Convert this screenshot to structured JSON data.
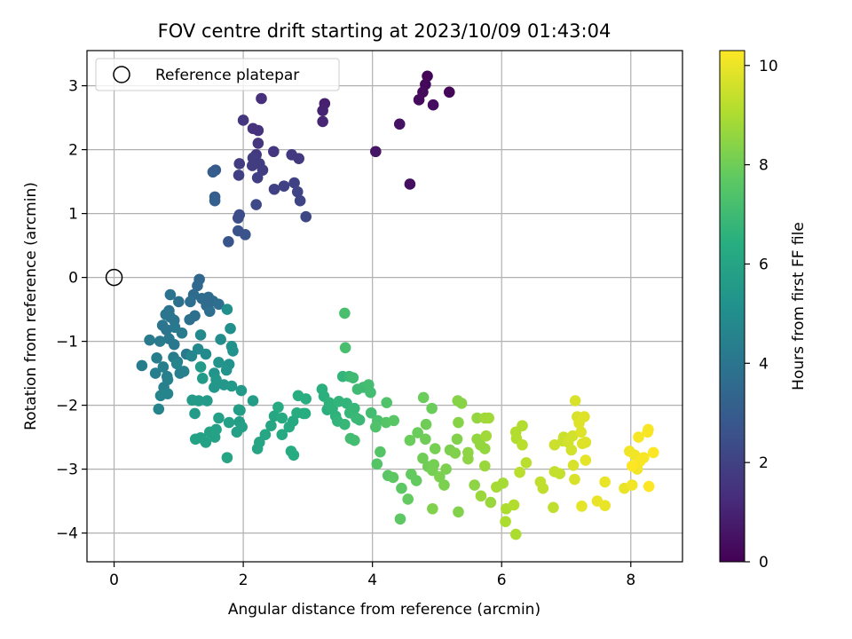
{
  "chart_data": {
    "type": "scatter",
    "title": "FOV centre drift starting at 2023/10/09 01:43:04",
    "xlabel": "Angular distance from reference (arcmin)",
    "ylabel": "Rotation from reference (arcmin)",
    "xlim": [
      -0.42,
      8.8
    ],
    "ylim": [
      -4.45,
      3.55
    ],
    "xticks": [
      0,
      2,
      4,
      6,
      8
    ],
    "yticks": [
      3,
      2,
      1,
      0,
      -1,
      -2,
      -3,
      -4
    ],
    "xtick_labels": [
      "0",
      "2",
      "4",
      "6",
      "8"
    ],
    "ytick_labels": [
      "3",
      "2",
      "1",
      "0",
      "−1",
      "−2",
      "−3",
      "−4"
    ],
    "grid": true,
    "legend": {
      "placement": "upper-left",
      "entries": [
        {
          "label": "Reference platepar",
          "marker": "open-circle"
        }
      ]
    },
    "reference_point": {
      "x": 0,
      "y": 0
    },
    "colorbar": {
      "label": "Hours from first FF file",
      "colormap": "viridis",
      "range": [
        0,
        10.3
      ],
      "ticks": [
        0,
        2,
        4,
        6,
        8,
        10
      ],
      "tick_labels": [
        "0",
        "2",
        "4",
        "6",
        "8",
        "10"
      ]
    },
    "points": [
      [
        4.85,
        3.15,
        0.1
      ],
      [
        4.82,
        3.02,
        0.2
      ],
      [
        4.78,
        2.9,
        0.25
      ],
      [
        4.72,
        2.78,
        0.3
      ],
      [
        4.94,
        2.7,
        0.35
      ],
      [
        5.19,
        2.9,
        0.15
      ],
      [
        4.42,
        2.4,
        0.5
      ],
      [
        4.05,
        1.97,
        0.6
      ],
      [
        4.58,
        1.46,
        0.4
      ],
      [
        3.26,
        2.72,
        0.9
      ],
      [
        3.23,
        2.61,
        1.0
      ],
      [
        3.23,
        2.44,
        1.1
      ],
      [
        2.28,
        2.8,
        1.4
      ],
      [
        2.23,
        2.3,
        1.5
      ],
      [
        2.15,
        2.33,
        1.5
      ],
      [
        2.0,
        2.46,
        1.6
      ],
      [
        2.23,
        2.1,
        1.6
      ],
      [
        2.47,
        1.97,
        1.6
      ],
      [
        2.75,
        1.92,
        1.7
      ],
      [
        2.86,
        1.86,
        1.7
      ],
      [
        2.2,
        1.92,
        1.7
      ],
      [
        2.15,
        1.87,
        1.8
      ],
      [
        2.25,
        1.78,
        1.8
      ],
      [
        2.14,
        1.75,
        1.8
      ],
      [
        2.3,
        1.68,
        1.8
      ],
      [
        1.94,
        1.78,
        1.8
      ],
      [
        1.93,
        1.6,
        1.9
      ],
      [
        2.22,
        1.56,
        1.9
      ],
      [
        2.63,
        1.43,
        2.0
      ],
      [
        2.48,
        1.38,
        2.0
      ],
      [
        2.79,
        1.48,
        2.0
      ],
      [
        2.84,
        1.34,
        2.1
      ],
      [
        2.88,
        1.2,
        2.1
      ],
      [
        2.97,
        0.95,
        2.2
      ],
      [
        2.2,
        1.14,
        2.3
      ],
      [
        1.92,
        0.93,
        2.4
      ],
      [
        1.94,
        0.98,
        2.4
      ],
      [
        1.92,
        0.73,
        2.6
      ],
      [
        2.03,
        0.67,
        2.6
      ],
      [
        1.77,
        0.56,
        2.7
      ],
      [
        1.57,
        1.68,
        2.9
      ],
      [
        1.53,
        1.65,
        3.0
      ],
      [
        1.56,
        1.26,
        3.0
      ],
      [
        1.56,
        1.2,
        3.1
      ],
      [
        1.32,
        -0.03,
        3.4
      ],
      [
        1.29,
        -0.13,
        3.5
      ],
      [
        1.23,
        -0.27,
        3.6
      ],
      [
        1.36,
        -0.33,
        3.6
      ],
      [
        1.46,
        -0.31,
        3.6
      ],
      [
        1.53,
        -0.37,
        3.6
      ],
      [
        1.43,
        -0.44,
        3.6
      ],
      [
        1.48,
        -0.53,
        3.7
      ],
      [
        1.62,
        -0.42,
        3.7
      ],
      [
        1.18,
        -0.38,
        3.7
      ],
      [
        1.25,
        -0.6,
        3.8
      ],
      [
        1.17,
        -0.66,
        3.8
      ],
      [
        1.0,
        -0.38,
        3.8
      ],
      [
        0.87,
        -0.27,
        3.9
      ],
      [
        0.85,
        -0.52,
        3.9
      ],
      [
        0.8,
        -0.58,
        4.0
      ],
      [
        0.87,
        -0.62,
        4.0
      ],
      [
        0.93,
        -0.67,
        4.0
      ],
      [
        0.75,
        -0.75,
        4.0
      ],
      [
        0.81,
        -0.82,
        4.0
      ],
      [
        0.85,
        -0.96,
        4.1
      ],
      [
        0.93,
        -1.05,
        4.1
      ],
      [
        0.94,
        -0.78,
        4.1
      ],
      [
        1.05,
        -0.87,
        4.2
      ],
      [
        1.12,
        -1.2,
        4.2
      ],
      [
        0.55,
        -0.98,
        4.2
      ],
      [
        0.71,
        -1.0,
        4.2
      ],
      [
        0.66,
        -1.26,
        4.3
      ],
      [
        0.92,
        -1.25,
        4.3
      ],
      [
        0.98,
        -1.32,
        4.3
      ],
      [
        0.43,
        -1.38,
        4.3
      ],
      [
        0.64,
        -1.5,
        4.4
      ],
      [
        0.76,
        -1.4,
        4.4
      ],
      [
        0.82,
        -1.55,
        4.4
      ],
      [
        1.02,
        -1.5,
        4.4
      ],
      [
        1.08,
        -1.47,
        4.5
      ],
      [
        0.83,
        -1.6,
        4.5
      ],
      [
        0.77,
        -1.72,
        4.5
      ],
      [
        0.83,
        -1.82,
        4.6
      ],
      [
        0.72,
        -1.85,
        4.6
      ],
      [
        0.69,
        -2.06,
        4.6
      ],
      [
        0.97,
        -1.35,
        4.6
      ],
      [
        1.2,
        -1.23,
        4.7
      ],
      [
        1.34,
        -0.9,
        4.8
      ],
      [
        1.3,
        -1.12,
        4.8
      ],
      [
        1.42,
        -1.2,
        4.9
      ],
      [
        1.65,
        -0.97,
        5.0
      ],
      [
        1.75,
        -0.5,
        5.1
      ],
      [
        1.8,
        -0.8,
        5.1
      ],
      [
        1.82,
        -1.08,
        5.2
      ],
      [
        1.84,
        -1.15,
        5.2
      ],
      [
        1.78,
        -1.36,
        5.2
      ],
      [
        1.74,
        -1.45,
        5.3
      ],
      [
        1.62,
        -1.33,
        5.3
      ],
      [
        1.55,
        -1.5,
        5.3
      ],
      [
        1.58,
        -1.6,
        5.4
      ],
      [
        1.55,
        -1.72,
        5.4
      ],
      [
        1.7,
        -1.68,
        5.4
      ],
      [
        1.82,
        -1.7,
        5.5
      ],
      [
        1.97,
        -1.77,
        5.5
      ],
      [
        1.34,
        -1.4,
        5.6
      ],
      [
        1.37,
        -1.58,
        5.6
      ],
      [
        1.31,
        -1.93,
        5.6
      ],
      [
        1.44,
        -1.93,
        5.6
      ],
      [
        1.21,
        -1.92,
        5.6
      ],
      [
        1.25,
        -2.13,
        5.6
      ],
      [
        1.93,
        -2.07,
        5.7
      ],
      [
        1.95,
        -2.08,
        5.7
      ],
      [
        2.15,
        -1.93,
        5.7
      ],
      [
        1.94,
        -2.26,
        5.7
      ],
      [
        1.98,
        -2.34,
        5.8
      ],
      [
        1.9,
        -2.42,
        5.8
      ],
      [
        1.62,
        -2.2,
        5.8
      ],
      [
        1.78,
        -2.27,
        5.8
      ],
      [
        1.58,
        -2.38,
        5.8
      ],
      [
        1.48,
        -2.42,
        5.9
      ],
      [
        1.34,
        -2.51,
        5.9
      ],
      [
        1.26,
        -2.53,
        5.9
      ],
      [
        1.42,
        -2.58,
        5.9
      ],
      [
        1.56,
        -2.5,
        5.9
      ],
      [
        1.75,
        -2.82,
        6.0
      ],
      [
        2.25,
        -2.58,
        6.0
      ],
      [
        2.22,
        -2.68,
        6.0
      ],
      [
        2.34,
        -2.46,
        6.1
      ],
      [
        2.43,
        -2.32,
        6.1
      ],
      [
        2.48,
        -2.17,
        6.1
      ],
      [
        2.54,
        -2.03,
        6.2
      ],
      [
        2.6,
        -2.2,
        6.2
      ],
      [
        2.6,
        -2.46,
        6.2
      ],
      [
        2.71,
        -2.34,
        6.2
      ],
      [
        2.77,
        -2.25,
        6.2
      ],
      [
        2.74,
        -2.72,
        6.3
      ],
      [
        2.78,
        -2.78,
        6.3
      ],
      [
        2.83,
        -2.12,
        6.3
      ],
      [
        2.93,
        -2.13,
        6.3
      ],
      [
        2.96,
        -2.13,
        6.4
      ],
      [
        2.97,
        -1.9,
        6.4
      ],
      [
        2.85,
        -1.85,
        6.4
      ],
      [
        3.22,
        -1.75,
        6.5
      ],
      [
        3.25,
        -1.86,
        6.5
      ],
      [
        3.3,
        -2.07,
        6.5
      ],
      [
        3.33,
        -1.96,
        6.6
      ],
      [
        3.38,
        -2.05,
        6.6
      ],
      [
        3.43,
        -2.17,
        6.6
      ],
      [
        3.46,
        -2.25,
        6.7
      ],
      [
        3.48,
        -1.94,
        6.7
      ],
      [
        3.54,
        -1.55,
        6.7
      ],
      [
        3.6,
        -1.97,
        6.7
      ],
      [
        3.57,
        -2.3,
        6.8
      ],
      [
        3.65,
        -2.12,
        6.8
      ],
      [
        3.72,
        -2.05,
        6.8
      ],
      [
        3.75,
        -2.2,
        6.9
      ],
      [
        3.8,
        -2.23,
        6.9
      ],
      [
        3.64,
        -1.55,
        6.9
      ],
      [
        3.7,
        -1.57,
        7.0
      ],
      [
        3.77,
        -1.75,
        7.0
      ],
      [
        3.86,
        -1.72,
        7.0
      ],
      [
        3.94,
        -1.68,
        7.1
      ],
      [
        3.97,
        -1.8,
        7.1
      ],
      [
        3.98,
        -2.12,
        7.1
      ],
      [
        3.66,
        -2.52,
        7.1
      ],
      [
        3.72,
        -2.55,
        7.1
      ],
      [
        3.58,
        -1.1,
        7.2
      ],
      [
        3.57,
        -0.56,
        7.2
      ],
      [
        4.08,
        -2.24,
        7.3
      ],
      [
        4.05,
        -2.34,
        7.4
      ],
      [
        4.22,
        -1.96,
        7.4
      ],
      [
        4.21,
        -2.27,
        7.5
      ],
      [
        4.12,
        -2.73,
        7.5
      ],
      [
        4.07,
        -2.92,
        7.5
      ],
      [
        4.33,
        -2.24,
        7.6
      ],
      [
        4.24,
        -3.1,
        7.6
      ],
      [
        4.32,
        -3.13,
        7.7
      ],
      [
        4.45,
        -3.3,
        7.7
      ],
      [
        4.43,
        -3.78,
        7.7
      ],
      [
        4.55,
        -3.47,
        7.8
      ],
      [
        4.6,
        -3.08,
        7.8
      ],
      [
        4.68,
        -3.18,
        7.8
      ],
      [
        4.58,
        -2.55,
        7.9
      ],
      [
        4.7,
        -2.43,
        7.9
      ],
      [
        4.79,
        -1.88,
        7.9
      ],
      [
        4.92,
        -2.05,
        7.9
      ],
      [
        4.83,
        -2.3,
        8.0
      ],
      [
        4.82,
        -2.53,
        8.0
      ],
      [
        4.78,
        -2.83,
        8.0
      ],
      [
        4.86,
        -2.96,
        8.0
      ],
      [
        4.95,
        -2.93,
        8.1
      ],
      [
        4.97,
        -2.68,
        8.1
      ],
      [
        4.93,
        -3.02,
        8.1
      ],
      [
        5.04,
        -3.12,
        8.2
      ],
      [
        5.11,
        -3.25,
        8.2
      ],
      [
        5.14,
        -3.0,
        8.2
      ],
      [
        5.2,
        -2.7,
        8.2
      ],
      [
        5.28,
        -2.75,
        8.3
      ],
      [
        4.93,
        -3.62,
        8.3
      ],
      [
        5.33,
        -3.67,
        8.3
      ],
      [
        5.31,
        -2.53,
        8.3
      ],
      [
        5.32,
        -1.93,
        8.4
      ],
      [
        5.38,
        -1.97,
        8.4
      ],
      [
        5.33,
        -2.27,
        8.4
      ],
      [
        5.48,
        -2.74,
        8.5
      ],
      [
        5.48,
        -2.84,
        8.5
      ],
      [
        5.58,
        -3.25,
        8.5
      ],
      [
        5.62,
        -2.2,
        8.6
      ],
      [
        5.62,
        -2.53,
        8.6
      ],
      [
        5.67,
        -2.62,
        8.6
      ],
      [
        5.74,
        -2.68,
        8.6
      ],
      [
        5.74,
        -2.95,
        8.7
      ],
      [
        5.68,
        -3.42,
        8.7
      ],
      [
        5.83,
        -3.52,
        8.7
      ],
      [
        5.74,
        -2.2,
        8.8
      ],
      [
        5.76,
        -2.48,
        8.8
      ],
      [
        5.8,
        -2.2,
        8.8
      ],
      [
        5.92,
        -3.28,
        8.9
      ],
      [
        6.02,
        -3.22,
        8.9
      ],
      [
        6.07,
        -3.62,
        9.0
      ],
      [
        6.06,
        -3.82,
        9.0
      ],
      [
        6.22,
        -4.02,
        9.0
      ],
      [
        6.19,
        -3.56,
        9.1
      ],
      [
        6.22,
        -2.42,
        9.1
      ],
      [
        6.23,
        -2.52,
        9.1
      ],
      [
        6.32,
        -2.32,
        9.1
      ],
      [
        6.32,
        -2.62,
        9.2
      ],
      [
        6.28,
        -3.05,
        9.2
      ],
      [
        6.38,
        -2.9,
        9.2
      ],
      [
        6.6,
        -3.2,
        9.3
      ],
      [
        6.64,
        -3.3,
        9.3
      ],
      [
        6.8,
        -3.6,
        9.3
      ],
      [
        6.82,
        -3.04,
        9.4
      ],
      [
        6.9,
        -3.07,
        9.4
      ],
      [
        6.82,
        -2.62,
        9.5
      ],
      [
        6.95,
        -2.56,
        9.5
      ],
      [
        6.96,
        -2.5,
        9.5
      ],
      [
        7.03,
        -2.58,
        9.6
      ],
      [
        7.1,
        -2.48,
        9.6
      ],
      [
        7.08,
        -2.7,
        9.6
      ],
      [
        7.11,
        -2.94,
        9.7
      ],
      [
        7.13,
        -3.16,
        9.7
      ],
      [
        7.14,
        -1.93,
        9.7
      ],
      [
        7.17,
        -2.18,
        9.7
      ],
      [
        7.2,
        -2.28,
        9.8
      ],
      [
        7.23,
        -2.42,
        9.8
      ],
      [
        7.28,
        -2.18,
        9.8
      ],
      [
        7.25,
        -2.6,
        9.8
      ],
      [
        7.3,
        -2.58,
        9.8
      ],
      [
        7.24,
        -3.58,
        9.9
      ],
      [
        7.3,
        -2.86,
        9.9
      ],
      [
        7.48,
        -3.5,
        10.0
      ],
      [
        7.6,
        -3.57,
        10.0
      ],
      [
        7.6,
        -3.2,
        10.0
      ],
      [
        7.9,
        -3.3,
        10.0
      ],
      [
        8.02,
        -3.25,
        10.1
      ],
      [
        8.1,
        -3.0,
        10.1
      ],
      [
        8.06,
        -2.78,
        10.1
      ],
      [
        7.98,
        -2.72,
        10.1
      ],
      [
        8.14,
        -2.88,
        10.2
      ],
      [
        8.2,
        -2.82,
        10.2
      ],
      [
        8.27,
        -2.38,
        10.2
      ],
      [
        8.26,
        -2.42,
        10.2
      ],
      [
        8.12,
        -2.5,
        10.2
      ],
      [
        8.35,
        -2.74,
        10.3
      ],
      [
        8.28,
        -3.27,
        10.3
      ],
      [
        8.02,
        -2.95,
        10.3
      ]
    ]
  }
}
